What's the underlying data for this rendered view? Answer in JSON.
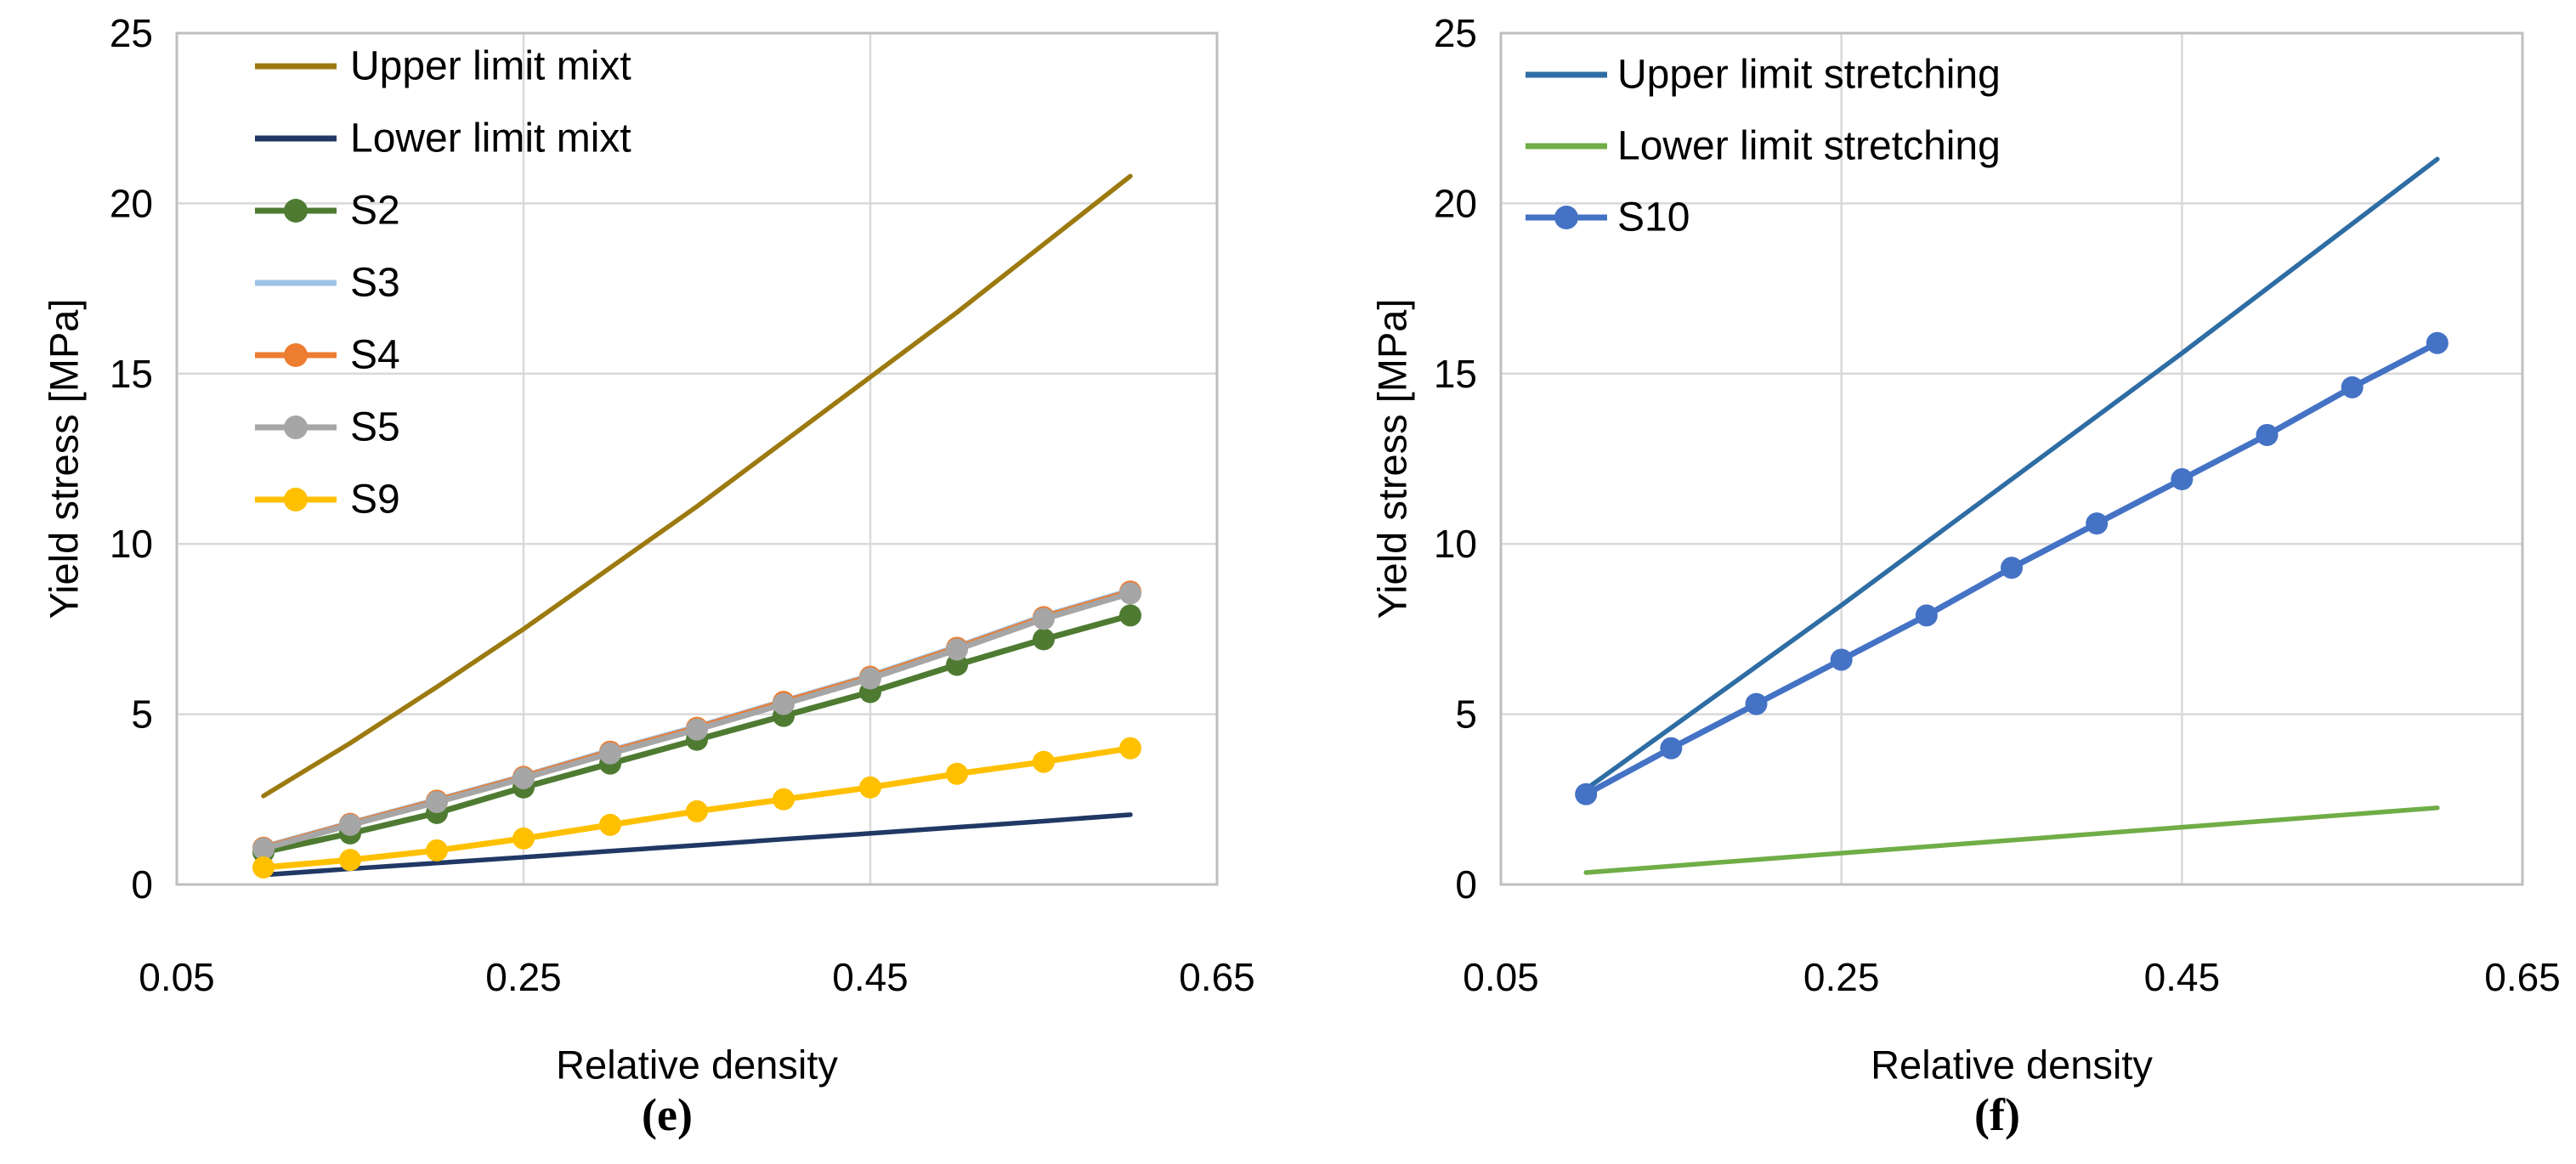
{
  "figure": {
    "background": "#FFFFFF",
    "text_color": "#000000",
    "gridline_color": "#D9D9D9",
    "axis_border_color": "#BFBFBF"
  },
  "chart_data": [
    {
      "id": "e",
      "type": "line",
      "caption": "(e)",
      "xlabel": "Relative density",
      "ylabel": "Yield stress [MPa]",
      "xlim": [
        0.05,
        0.65
      ],
      "ylim": [
        0,
        25
      ],
      "x_ticks": [
        0.05,
        0.25,
        0.45,
        0.65
      ],
      "x_tick_labels": [
        "0.05",
        "0.25",
        "0.45",
        "0.65"
      ],
      "y_ticks": [
        0,
        5,
        10,
        15,
        20,
        25
      ],
      "y_tick_labels": [
        "0",
        "5",
        "10",
        "15",
        "20",
        "25"
      ],
      "grid": true,
      "legend_position": "top-left-inside",
      "x": [
        0.1,
        0.15,
        0.2,
        0.25,
        0.3,
        0.35,
        0.4,
        0.45,
        0.5,
        0.55,
        0.6
      ],
      "series": [
        {
          "name": "Upper limit mixt",
          "color": "#9C7A10",
          "marker": false,
          "values": [
            2.6,
            4.15,
            5.8,
            7.5,
            9.3,
            11.1,
            13.0,
            14.9,
            16.8,
            18.8,
            20.8
          ]
        },
        {
          "name": "Lower limit mixt",
          "color": "#203864",
          "marker": false,
          "values": [
            0.28,
            0.46,
            0.63,
            0.8,
            0.98,
            1.15,
            1.33,
            1.5,
            1.68,
            1.86,
            2.05
          ]
        },
        {
          "name": "S2",
          "color": "#4E7B31",
          "marker": true,
          "values": [
            0.95,
            1.5,
            2.1,
            2.85,
            3.55,
            4.25,
            4.95,
            5.65,
            6.45,
            7.2,
            7.9
          ]
        },
        {
          "name": "S3",
          "color": "#9DC3E6",
          "marker": false,
          "values": [
            1.12,
            1.82,
            2.5,
            3.2,
            3.95,
            4.65,
            5.4,
            6.15,
            7.0,
            7.9,
            8.65
          ]
        },
        {
          "name": "S4",
          "color": "#ED7D31",
          "marker": true,
          "values": [
            1.08,
            1.78,
            2.46,
            3.16,
            3.9,
            4.6,
            5.36,
            6.1,
            6.95,
            7.85,
            8.6
          ]
        },
        {
          "name": "S5",
          "color": "#A6A6A6",
          "marker": true,
          "values": [
            1.05,
            1.75,
            2.42,
            3.12,
            3.85,
            4.55,
            5.3,
            6.05,
            6.9,
            7.8,
            8.55
          ]
        },
        {
          "name": "S9",
          "color": "#FFC000",
          "marker": true,
          "values": [
            0.5,
            0.72,
            1.0,
            1.35,
            1.75,
            2.15,
            2.5,
            2.85,
            3.25,
            3.6,
            4.0
          ]
        }
      ]
    },
    {
      "id": "f",
      "type": "line",
      "caption": "(f)",
      "xlabel": "Relative density",
      "ylabel": "Yield stress [MPa]",
      "xlim": [
        0.05,
        0.65
      ],
      "ylim": [
        0,
        25
      ],
      "x_ticks": [
        0.05,
        0.25,
        0.45,
        0.65
      ],
      "x_tick_labels": [
        "0.05",
        "0.25",
        "0.45",
        "0.65"
      ],
      "y_ticks": [
        0,
        5,
        10,
        15,
        20,
        25
      ],
      "y_tick_labels": [
        "0",
        "5",
        "10",
        "15",
        "20",
        "25"
      ],
      "grid": true,
      "legend_position": "top-left-inside",
      "x": [
        0.1,
        0.15,
        0.2,
        0.25,
        0.3,
        0.35,
        0.4,
        0.45,
        0.5,
        0.55,
        0.6
      ],
      "series": [
        {
          "name": "Upper limit stretching",
          "color": "#2E6DA4",
          "marker": false,
          "values": [
            2.8,
            4.6,
            6.4,
            8.2,
            10.05,
            11.9,
            13.75,
            15.6,
            17.5,
            19.4,
            21.3
          ]
        },
        {
          "name": "Lower limit stretching",
          "color": "#70AD47",
          "marker": false,
          "values": [
            0.35,
            0.54,
            0.73,
            0.92,
            1.11,
            1.3,
            1.49,
            1.68,
            1.87,
            2.06,
            2.25
          ]
        },
        {
          "name": "S10",
          "color": "#4472C4",
          "marker": true,
          "values": [
            2.65,
            4.0,
            5.3,
            6.6,
            7.9,
            9.3,
            10.6,
            11.9,
            13.2,
            14.6,
            15.9
          ]
        }
      ]
    }
  ]
}
